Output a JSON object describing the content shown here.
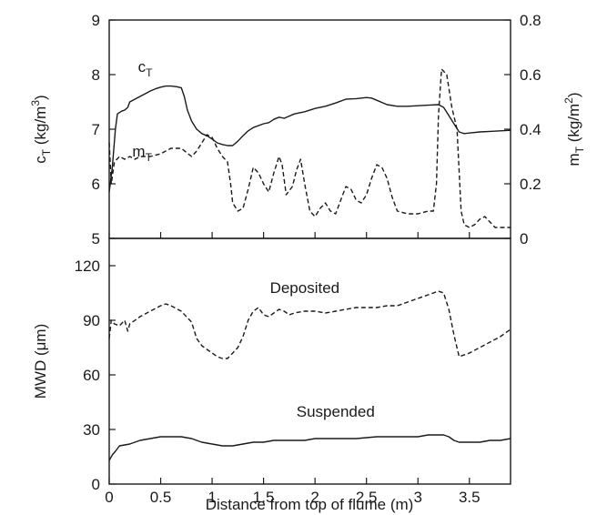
{
  "chart_data": [
    {
      "type": "line",
      "panel": "top",
      "xlabel": "",
      "x_ticks": [
        0,
        0.5,
        1,
        1.5,
        2,
        2.5,
        3,
        3.5
      ],
      "xlim": [
        0,
        3.9
      ],
      "ylabel_left": {
        "base": "c",
        "sub": "T",
        "unit": " (kg/m",
        "sup": "3",
        "close": ")"
      },
      "ylabel_right": {
        "base": "m",
        "sub": "T",
        "unit": " (kg/m",
        "sup": "2",
        "close": ")"
      },
      "y_left_ticks": [
        5,
        6,
        7,
        8,
        9
      ],
      "y_left_lim": [
        5,
        9
      ],
      "y_right_ticks": [
        0,
        0.2,
        0.4,
        0.6,
        0.8
      ],
      "y_right_tick_labels": [
        "0",
        "0.2",
        "0.4",
        "0.6",
        "0.8"
      ],
      "y_right_lim": [
        0,
        0.8
      ],
      "series": [
        {
          "label_base": "c",
          "label_sub": "T",
          "label_pos": [
            0.35,
            8.05
          ],
          "axis": "left",
          "style": "solid",
          "points": [
            [
              0,
              5.85
            ],
            [
              0.03,
              6.3
            ],
            [
              0.06,
              7.0
            ],
            [
              0.08,
              7.28
            ],
            [
              0.12,
              7.33
            ],
            [
              0.15,
              7.35
            ],
            [
              0.18,
              7.4
            ],
            [
              0.2,
              7.5
            ],
            [
              0.25,
              7.55
            ],
            [
              0.3,
              7.6
            ],
            [
              0.35,
              7.65
            ],
            [
              0.4,
              7.7
            ],
            [
              0.45,
              7.74
            ],
            [
              0.5,
              7.77
            ],
            [
              0.55,
              7.79
            ],
            [
              0.6,
              7.79
            ],
            [
              0.65,
              7.78
            ],
            [
              0.7,
              7.76
            ],
            [
              0.73,
              7.6
            ],
            [
              0.76,
              7.35
            ],
            [
              0.8,
              7.15
            ],
            [
              0.85,
              7.0
            ],
            [
              0.9,
              6.92
            ],
            [
              0.95,
              6.88
            ],
            [
              1.0,
              6.82
            ],
            [
              1.05,
              6.75
            ],
            [
              1.1,
              6.72
            ],
            [
              1.15,
              6.7
            ],
            [
              1.2,
              6.7
            ],
            [
              1.25,
              6.78
            ],
            [
              1.3,
              6.88
            ],
            [
              1.35,
              6.97
            ],
            [
              1.4,
              7.03
            ],
            [
              1.5,
              7.1
            ],
            [
              1.55,
              7.12
            ],
            [
              1.6,
              7.18
            ],
            [
              1.65,
              7.22
            ],
            [
              1.7,
              7.2
            ],
            [
              1.8,
              7.28
            ],
            [
              1.9,
              7.32
            ],
            [
              2.0,
              7.38
            ],
            [
              2.1,
              7.42
            ],
            [
              2.2,
              7.48
            ],
            [
              2.3,
              7.55
            ],
            [
              2.4,
              7.56
            ],
            [
              2.5,
              7.58
            ],
            [
              2.55,
              7.57
            ],
            [
              2.6,
              7.53
            ],
            [
              2.7,
              7.45
            ],
            [
              2.8,
              7.42
            ],
            [
              2.9,
              7.42
            ],
            [
              3.0,
              7.43
            ],
            [
              3.1,
              7.44
            ],
            [
              3.2,
              7.45
            ],
            [
              3.25,
              7.4
            ],
            [
              3.3,
              7.25
            ],
            [
              3.35,
              7.1
            ],
            [
              3.4,
              6.95
            ],
            [
              3.45,
              6.92
            ],
            [
              3.5,
              6.93
            ],
            [
              3.6,
              6.95
            ],
            [
              3.7,
              6.96
            ],
            [
              3.8,
              6.97
            ],
            [
              3.9,
              6.98
            ]
          ]
        },
        {
          "label_base": "m",
          "label_sub": "T",
          "label_pos": [
            0.32,
            6.5
          ],
          "axis": "right",
          "style": "dashed",
          "points": [
            [
              0,
              0.35
            ],
            [
              0.02,
              0.2
            ],
            [
              0.05,
              0.28
            ],
            [
              0.1,
              0.3
            ],
            [
              0.15,
              0.29
            ],
            [
              0.2,
              0.3
            ],
            [
              0.25,
              0.29
            ],
            [
              0.3,
              0.3
            ],
            [
              0.4,
              0.3
            ],
            [
              0.5,
              0.31
            ],
            [
              0.6,
              0.33
            ],
            [
              0.7,
              0.33
            ],
            [
              0.8,
              0.3
            ],
            [
              0.85,
              0.32
            ],
            [
              0.9,
              0.35
            ],
            [
              0.95,
              0.38
            ],
            [
              1.0,
              0.37
            ],
            [
              1.05,
              0.33
            ],
            [
              1.1,
              0.3
            ],
            [
              1.15,
              0.28
            ],
            [
              1.18,
              0.2
            ],
            [
              1.2,
              0.13
            ],
            [
              1.25,
              0.1
            ],
            [
              1.3,
              0.11
            ],
            [
              1.35,
              0.18
            ],
            [
              1.4,
              0.26
            ],
            [
              1.45,
              0.24
            ],
            [
              1.5,
              0.2
            ],
            [
              1.55,
              0.17
            ],
            [
              1.6,
              0.24
            ],
            [
              1.65,
              0.3
            ],
            [
              1.68,
              0.27
            ],
            [
              1.72,
              0.16
            ],
            [
              1.78,
              0.19
            ],
            [
              1.82,
              0.25
            ],
            [
              1.86,
              0.29
            ],
            [
              1.9,
              0.2
            ],
            [
              1.95,
              0.1
            ],
            [
              2.0,
              0.08
            ],
            [
              2.05,
              0.11
            ],
            [
              2.1,
              0.13
            ],
            [
              2.15,
              0.1
            ],
            [
              2.2,
              0.09
            ],
            [
              2.25,
              0.14
            ],
            [
              2.3,
              0.19
            ],
            [
              2.35,
              0.18
            ],
            [
              2.4,
              0.14
            ],
            [
              2.45,
              0.13
            ],
            [
              2.5,
              0.16
            ],
            [
              2.55,
              0.22
            ],
            [
              2.6,
              0.27
            ],
            [
              2.65,
              0.26
            ],
            [
              2.7,
              0.22
            ],
            [
              2.75,
              0.15
            ],
            [
              2.8,
              0.1
            ],
            [
              2.9,
              0.09
            ],
            [
              3.0,
              0.09
            ],
            [
              3.1,
              0.1
            ],
            [
              3.15,
              0.1
            ],
            [
              3.18,
              0.2
            ],
            [
              3.2,
              0.45
            ],
            [
              3.23,
              0.62
            ],
            [
              3.28,
              0.6
            ],
            [
              3.33,
              0.48
            ],
            [
              3.38,
              0.4
            ],
            [
              3.42,
              0.1
            ],
            [
              3.45,
              0.05
            ],
            [
              3.5,
              0.04
            ],
            [
              3.55,
              0.05
            ],
            [
              3.6,
              0.07
            ],
            [
              3.65,
              0.08
            ],
            [
              3.7,
              0.06
            ],
            [
              3.75,
              0.04
            ],
            [
              3.8,
              0.04
            ],
            [
              3.9,
              0.04
            ]
          ]
        }
      ]
    },
    {
      "type": "line",
      "panel": "bottom",
      "xlabel": "Distance from top of flume (m)",
      "x_ticks": [
        0,
        0.5,
        1,
        1.5,
        2,
        2.5,
        3,
        3.5
      ],
      "x_tick_labels": [
        "0",
        "0.5",
        "1",
        "1.5",
        "2",
        "2.5",
        "3",
        "3.5"
      ],
      "xlim": [
        0,
        3.9
      ],
      "ylabel": "MWD (μm)",
      "y_ticks": [
        0,
        30,
        60,
        90,
        120
      ],
      "y_tick_labels": [
        "0",
        "30",
        "60",
        "90",
        "120"
      ],
      "ylim": [
        0,
        135
      ],
      "series": [
        {
          "name": "Deposited",
          "label_pos": [
            1.9,
            105
          ],
          "style": "dashed",
          "points": [
            [
              0,
              80
            ],
            [
              0.02,
              90
            ],
            [
              0.05,
              88
            ],
            [
              0.1,
              87
            ],
            [
              0.15,
              90
            ],
            [
              0.18,
              84
            ],
            [
              0.2,
              88
            ],
            [
              0.3,
              92
            ],
            [
              0.4,
              95
            ],
            [
              0.5,
              98
            ],
            [
              0.55,
              99
            ],
            [
              0.6,
              98
            ],
            [
              0.7,
              95
            ],
            [
              0.8,
              89
            ],
            [
              0.85,
              80
            ],
            [
              0.9,
              76
            ],
            [
              0.95,
              74
            ],
            [
              1.0,
              72
            ],
            [
              1.05,
              70
            ],
            [
              1.1,
              69
            ],
            [
              1.15,
              69
            ],
            [
              1.2,
              72
            ],
            [
              1.25,
              75
            ],
            [
              1.3,
              81
            ],
            [
              1.35,
              90
            ],
            [
              1.4,
              95
            ],
            [
              1.45,
              97
            ],
            [
              1.5,
              93
            ],
            [
              1.55,
              92
            ],
            [
              1.6,
              94
            ],
            [
              1.65,
              96
            ],
            [
              1.7,
              95
            ],
            [
              1.75,
              93
            ],
            [
              1.8,
              94
            ],
            [
              1.9,
              95
            ],
            [
              2.0,
              95
            ],
            [
              2.1,
              94
            ],
            [
              2.2,
              95
            ],
            [
              2.3,
              96
            ],
            [
              2.4,
              97
            ],
            [
              2.5,
              97
            ],
            [
              2.6,
              97
            ],
            [
              2.7,
              98
            ],
            [
              2.8,
              98
            ],
            [
              2.9,
              100
            ],
            [
              3.0,
              102
            ],
            [
              3.1,
              104
            ],
            [
              3.2,
              106
            ],
            [
              3.25,
              105
            ],
            [
              3.3,
              96
            ],
            [
              3.35,
              82
            ],
            [
              3.4,
              70
            ],
            [
              3.5,
              72
            ],
            [
              3.6,
              75
            ],
            [
              3.7,
              78
            ],
            [
              3.8,
              81
            ],
            [
              3.9,
              85
            ]
          ]
        },
        {
          "name": "Suspended",
          "label_pos": [
            2.2,
            37
          ],
          "style": "solid",
          "points": [
            [
              0,
              13
            ],
            [
              0.03,
              16
            ],
            [
              0.06,
              18
            ],
            [
              0.1,
              21
            ],
            [
              0.2,
              22
            ],
            [
              0.3,
              24
            ],
            [
              0.4,
              25
            ],
            [
              0.5,
              26
            ],
            [
              0.6,
              26
            ],
            [
              0.7,
              26
            ],
            [
              0.8,
              25
            ],
            [
              0.9,
              23
            ],
            [
              1.0,
              22
            ],
            [
              1.1,
              21
            ],
            [
              1.2,
              21
            ],
            [
              1.3,
              22
            ],
            [
              1.4,
              23
            ],
            [
              1.5,
              23
            ],
            [
              1.6,
              24
            ],
            [
              1.7,
              24
            ],
            [
              1.8,
              24
            ],
            [
              1.9,
              24
            ],
            [
              2.0,
              25
            ],
            [
              2.2,
              25
            ],
            [
              2.4,
              25
            ],
            [
              2.6,
              26
            ],
            [
              2.8,
              26
            ],
            [
              3.0,
              26
            ],
            [
              3.1,
              27
            ],
            [
              3.2,
              27
            ],
            [
              3.25,
              27
            ],
            [
              3.3,
              26
            ],
            [
              3.35,
              24
            ],
            [
              3.4,
              23
            ],
            [
              3.5,
              23
            ],
            [
              3.6,
              23
            ],
            [
              3.7,
              24
            ],
            [
              3.8,
              24
            ],
            [
              3.9,
              25
            ]
          ]
        }
      ]
    }
  ]
}
